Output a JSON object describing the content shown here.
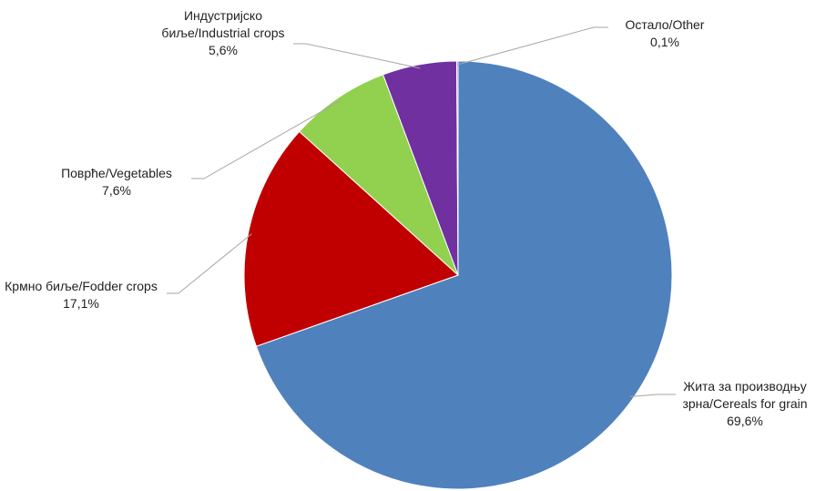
{
  "chart_data": {
    "type": "pie",
    "categories": [
      "Жита за производњу зрна/Cereals for grain",
      "Крмно биље/Fodder crops",
      "Поврће/Vegetables",
      "Индустријско биље/Industrial crops",
      "Остало/Other"
    ],
    "values": [
      69.6,
      17.1,
      7.6,
      5.6,
      0.1
    ],
    "value_labels": [
      "69,6%",
      "17,1%",
      "7,6%",
      "5,6%",
      "0,1%"
    ],
    "colors": [
      "#4f81bd",
      "#c00000",
      "#92d050",
      "#7030a0",
      "#8064a2"
    ]
  }
}
